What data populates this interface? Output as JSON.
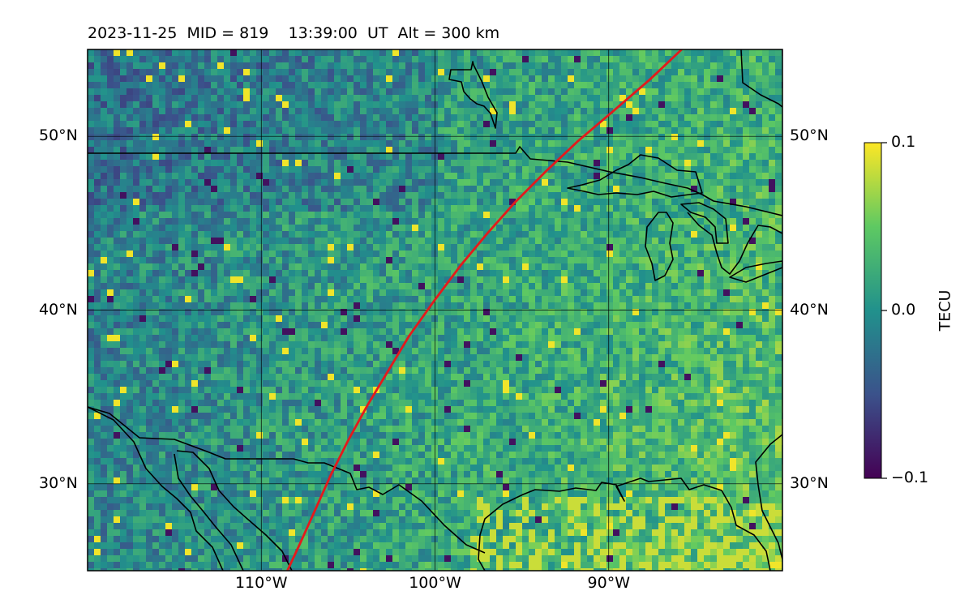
{
  "title": "2023-11-25  MID = 819    13:39:00  UT  Alt = 300 km",
  "map": {
    "lon_range": [
      -120,
      -80
    ],
    "lat_range": [
      25,
      55
    ],
    "lat_ticks_left": [
      {
        "label": "50°N",
        "value": 50
      },
      {
        "label": "40°N",
        "value": 40
      },
      {
        "label": "30°N",
        "value": 30
      }
    ],
    "lat_ticks_right": [
      {
        "label": "50°N",
        "value": 50
      },
      {
        "label": "40°N",
        "value": 40
      },
      {
        "label": "30°N",
        "value": 30
      }
    ],
    "lon_ticks": [
      {
        "label": "110°W",
        "value": -110
      },
      {
        "label": "100°W",
        "value": -100
      },
      {
        "label": "90°W",
        "value": -90
      }
    ],
    "terminator_color": "#e41a1c",
    "terminator_path": [
      [
        -108.5,
        25.0
      ],
      [
        -107.8,
        26.5
      ],
      [
        -106.9,
        28.5
      ],
      [
        -106.0,
        30.5
      ],
      [
        -105.0,
        32.5
      ],
      [
        -103.9,
        34.5
      ],
      [
        -102.7,
        36.5
      ],
      [
        -101.5,
        38.5
      ],
      [
        -100.0,
        40.6
      ],
      [
        -98.5,
        42.6
      ],
      [
        -97.0,
        44.4
      ],
      [
        -95.4,
        46.2
      ],
      [
        -93.6,
        48.0
      ],
      [
        -91.8,
        49.7
      ],
      [
        -89.8,
        51.4
      ],
      [
        -87.6,
        53.3
      ],
      [
        -85.8,
        55.0
      ]
    ]
  },
  "colorbar": {
    "label": "TECU",
    "min": -0.1,
    "max": 0.1,
    "ticks": [
      {
        "label": "0.1",
        "value": 0.1
      },
      {
        "label": "0.0",
        "value": 0.0
      },
      {
        "label": "−0.1",
        "value": -0.1
      }
    ],
    "colormap": [
      "#440154",
      "#3b528b",
      "#21918c",
      "#5ec962",
      "#fde725"
    ]
  }
}
